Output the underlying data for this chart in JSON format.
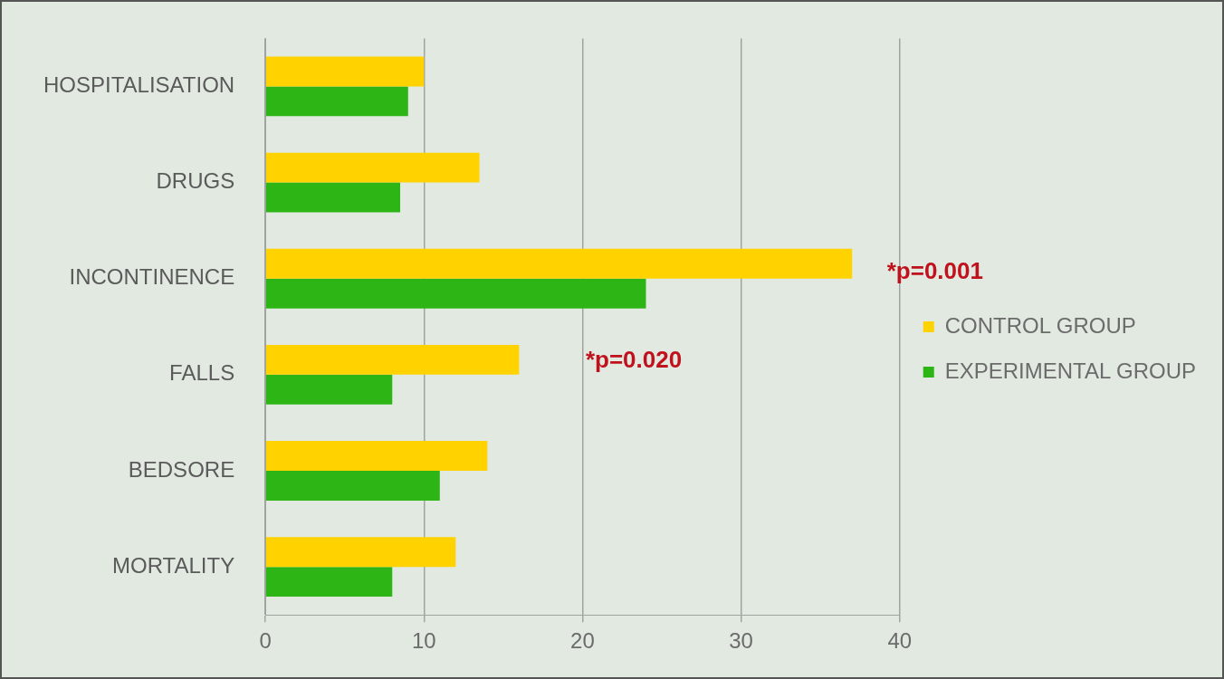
{
  "chart_data": {
    "type": "bar",
    "orientation": "horizontal",
    "categories": [
      "HOSPITALISATION",
      "DRUGS",
      "INCONTINENCE",
      "FALLS",
      "BEDSORE",
      "MORTALITY"
    ],
    "series": [
      {
        "name": "CONTROL GROUP",
        "color": "#ffd200",
        "values": [
          10,
          13.5,
          37,
          16,
          14,
          12
        ]
      },
      {
        "name": "EXPERIMENTAL GROUP",
        "color": "#2db515",
        "values": [
          9,
          8.5,
          24,
          8,
          11,
          8
        ]
      }
    ],
    "xlim": [
      0,
      40
    ],
    "xticks": [
      0,
      10,
      20,
      30,
      40
    ],
    "grid": "x",
    "legend": "right",
    "annotations": [
      "*p=0.020",
      "*p=0.001"
    ]
  }
}
